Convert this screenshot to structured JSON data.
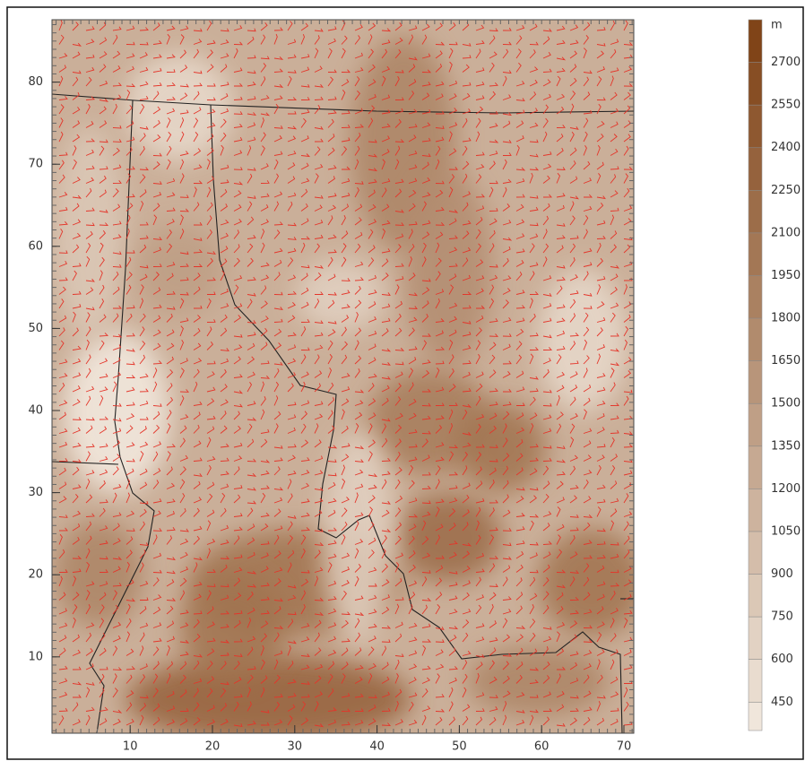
{
  "chart_data": {
    "type": "map",
    "xlim": [
      0.5,
      71.2
    ],
    "xticks": [
      10,
      20,
      30,
      40,
      50,
      60,
      70
    ],
    "ylim": [
      0.7,
      87.6
    ],
    "yticks": [
      10,
      20,
      30,
      40,
      50,
      60,
      70,
      80
    ],
    "colorbar": {
      "unit": "m",
      "range": [
        350,
        2850
      ],
      "ticks": [
        450,
        600,
        750,
        900,
        1050,
        1200,
        1350,
        1500,
        1650,
        1800,
        1950,
        2100,
        2250,
        2400,
        2550,
        2700
      ],
      "colors": [
        "#f4ebe1",
        "#7c3f12"
      ]
    },
    "barb_color": "#e4352a"
  }
}
